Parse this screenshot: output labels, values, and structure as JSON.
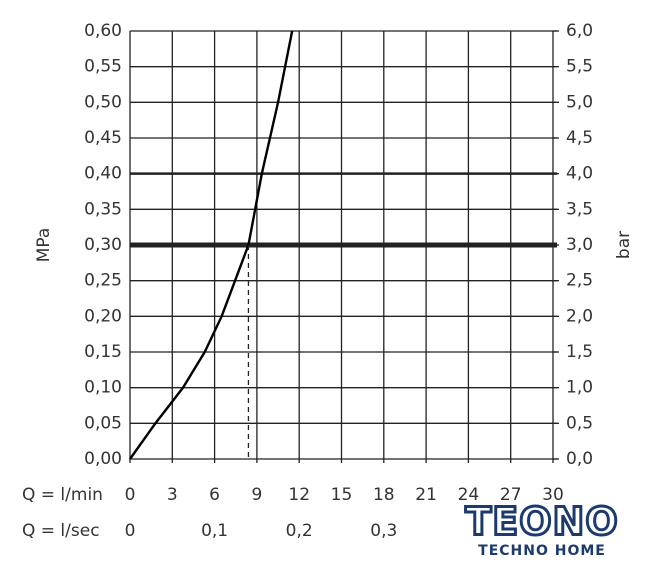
{
  "chart_data": {
    "type": "line",
    "x": [
      0,
      1.8,
      3.76,
      5.3,
      6.5,
      7.45,
      8.4,
      9.35,
      10.5,
      11.5
    ],
    "values": [
      0,
      0.05,
      0.1,
      0.15,
      0.2,
      0.25,
      0.3,
      0.4,
      0.5,
      0.6
    ],
    "color": "#000000",
    "xlabel": "Q = l/min",
    "x2label": "Q = l/sec",
    "ylabel": "MPa",
    "y2label": "bar",
    "xlim": [
      0,
      30
    ],
    "xticks": [
      0,
      3,
      6,
      9,
      12,
      15,
      18,
      21,
      24,
      27,
      30
    ],
    "x2lim": [
      0,
      0.5
    ],
    "x2ticks": [
      0,
      {
        "value": 0.1,
        "label": "0,1"
      },
      {
        "value": 0.2,
        "label": "0,2"
      },
      {
        "value": 0.3,
        "label": "0,3"
      }
    ],
    "ylim": [
      0,
      0.6
    ],
    "yticks": [
      {
        "value": 0,
        "label": "0,00"
      },
      {
        "value": 0.05,
        "label": "0,05"
      },
      {
        "value": 0.1,
        "label": "0,10"
      },
      {
        "value": 0.15,
        "label": "0,15"
      },
      {
        "value": 0.2,
        "label": "0,20"
      },
      {
        "value": 0.25,
        "label": "0,25"
      },
      {
        "value": 0.3,
        "label": "0,30"
      },
      {
        "value": 0.35,
        "label": "0,35"
      },
      {
        "value": 0.4,
        "label": "0,40"
      },
      {
        "value": 0.45,
        "label": "0,45"
      },
      {
        "value": 0.5,
        "label": "0,50"
      },
      {
        "value": 0.55,
        "label": "0,55"
      },
      {
        "value": 0.6,
        "label": "0,60"
      }
    ],
    "y2lim": [
      0,
      6
    ],
    "y2ticks": [
      {
        "value": 0,
        "label": "0,0"
      },
      {
        "value": 0.5,
        "label": "0,5"
      },
      {
        "value": 1,
        "label": "1,0"
      },
      {
        "value": 1.5,
        "label": "1,5"
      },
      {
        "value": 2,
        "label": "2,0"
      },
      {
        "value": 2.5,
        "label": "2,5"
      },
      {
        "value": 3,
        "label": "3,0"
      },
      {
        "value": 3.5,
        "label": "3,5"
      },
      {
        "value": 4,
        "label": "4,0"
      },
      {
        "value": 4.5,
        "label": "4,5"
      },
      {
        "value": 5,
        "label": "5,0"
      },
      {
        "value": 5.5,
        "label": "5,5"
      },
      {
        "value": 6,
        "label": "6,0"
      }
    ],
    "grid": true,
    "thick_y": [
      0.3,
      0.4
    ],
    "reference_x": 8.4,
    "reference_y": 0.3
  },
  "logo": {
    "text": "TEONO",
    "subtitle": "TECHNO HOME"
  }
}
